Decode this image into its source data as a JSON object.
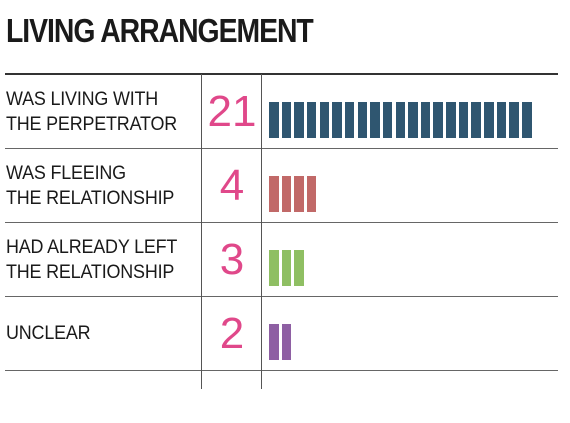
{
  "chart_data": {
    "type": "bar",
    "title": "LIVING ARRANGEMENT",
    "count_color": "#e0488a",
    "rows": [
      {
        "label_lines": [
          "WAS LIVING WITH",
          "THE PERPETRATOR"
        ],
        "value": 21,
        "color": "#2f5670"
      },
      {
        "label_lines": [
          "WAS FLEEING",
          "THE RELATIONSHIP"
        ],
        "value": 4,
        "color": "#c16968"
      },
      {
        "label_lines": [
          "HAD ALREADY LEFT",
          "THE RELATIONSHIP"
        ],
        "value": 3,
        "color": "#8fbf63"
      },
      {
        "label_lines": [
          "UNCLEAR"
        ],
        "value": 2,
        "color": "#8e5fa3"
      }
    ]
  }
}
